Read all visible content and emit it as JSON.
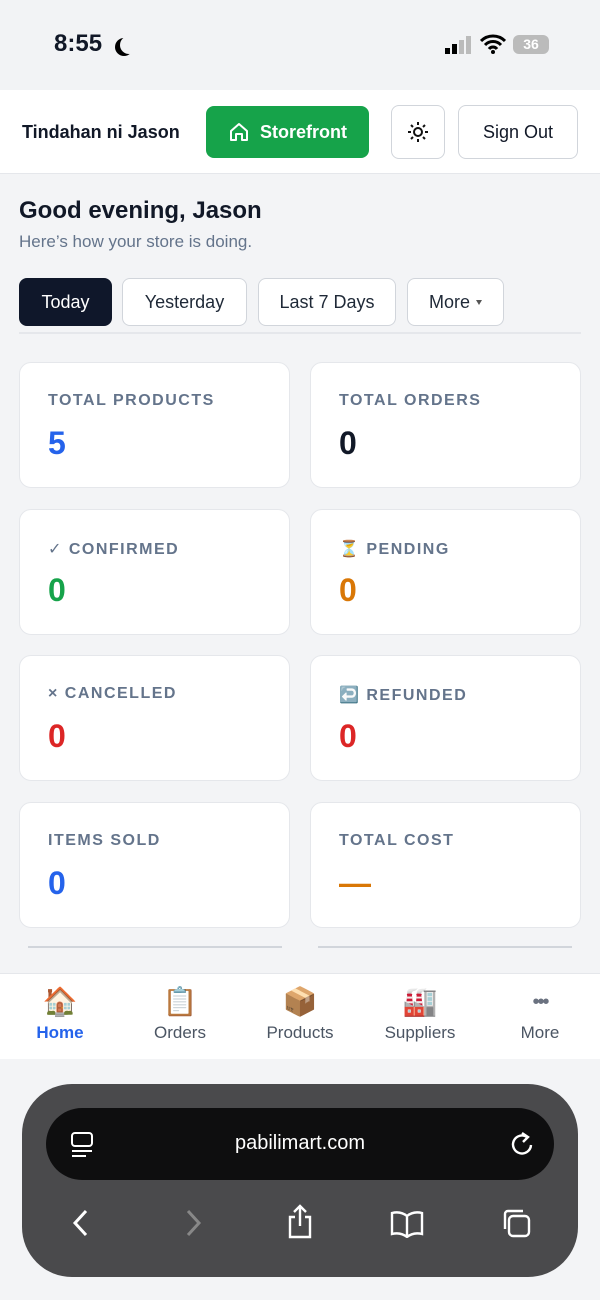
{
  "status_bar": {
    "time": "8:55",
    "battery": "36"
  },
  "header": {
    "store_name": "Tindahan ni Jason",
    "storefront": "Storefront",
    "sign_out": "Sign Out"
  },
  "greeting": {
    "title": "Good evening, Jason",
    "subtitle": "Here’s how your store is doing."
  },
  "filters": [
    "Today",
    "Yesterday",
    "Last 7 Days",
    "More"
  ],
  "cards": [
    {
      "label": "TOTAL PRODUCTS",
      "value": 5
    },
    {
      "label": "TOTAL ORDERS",
      "value": 0
    },
    {
      "label": "✓ CONFIRMED",
      "value": 0
    },
    {
      "label": "⏳ PENDING",
      "value": 0
    },
    {
      "label": "× CANCELLED",
      "value": 0
    },
    {
      "label": "↩️ REFUNDED",
      "value": 0
    },
    {
      "label": "ITEMS SOLD",
      "value": 0
    },
    {
      "label": "TOTAL COST",
      "value": "—"
    }
  ],
  "nav": [
    {
      "icon": "🏠",
      "label": "Home"
    },
    {
      "icon": "📋",
      "label": "Orders"
    },
    {
      "icon": "📦",
      "label": "Products"
    },
    {
      "icon": "🏭",
      "label": "Suppliers"
    },
    {
      "icon": "•••",
      "label": "More"
    }
  ],
  "browser": {
    "url": "pabilimart.com"
  }
}
